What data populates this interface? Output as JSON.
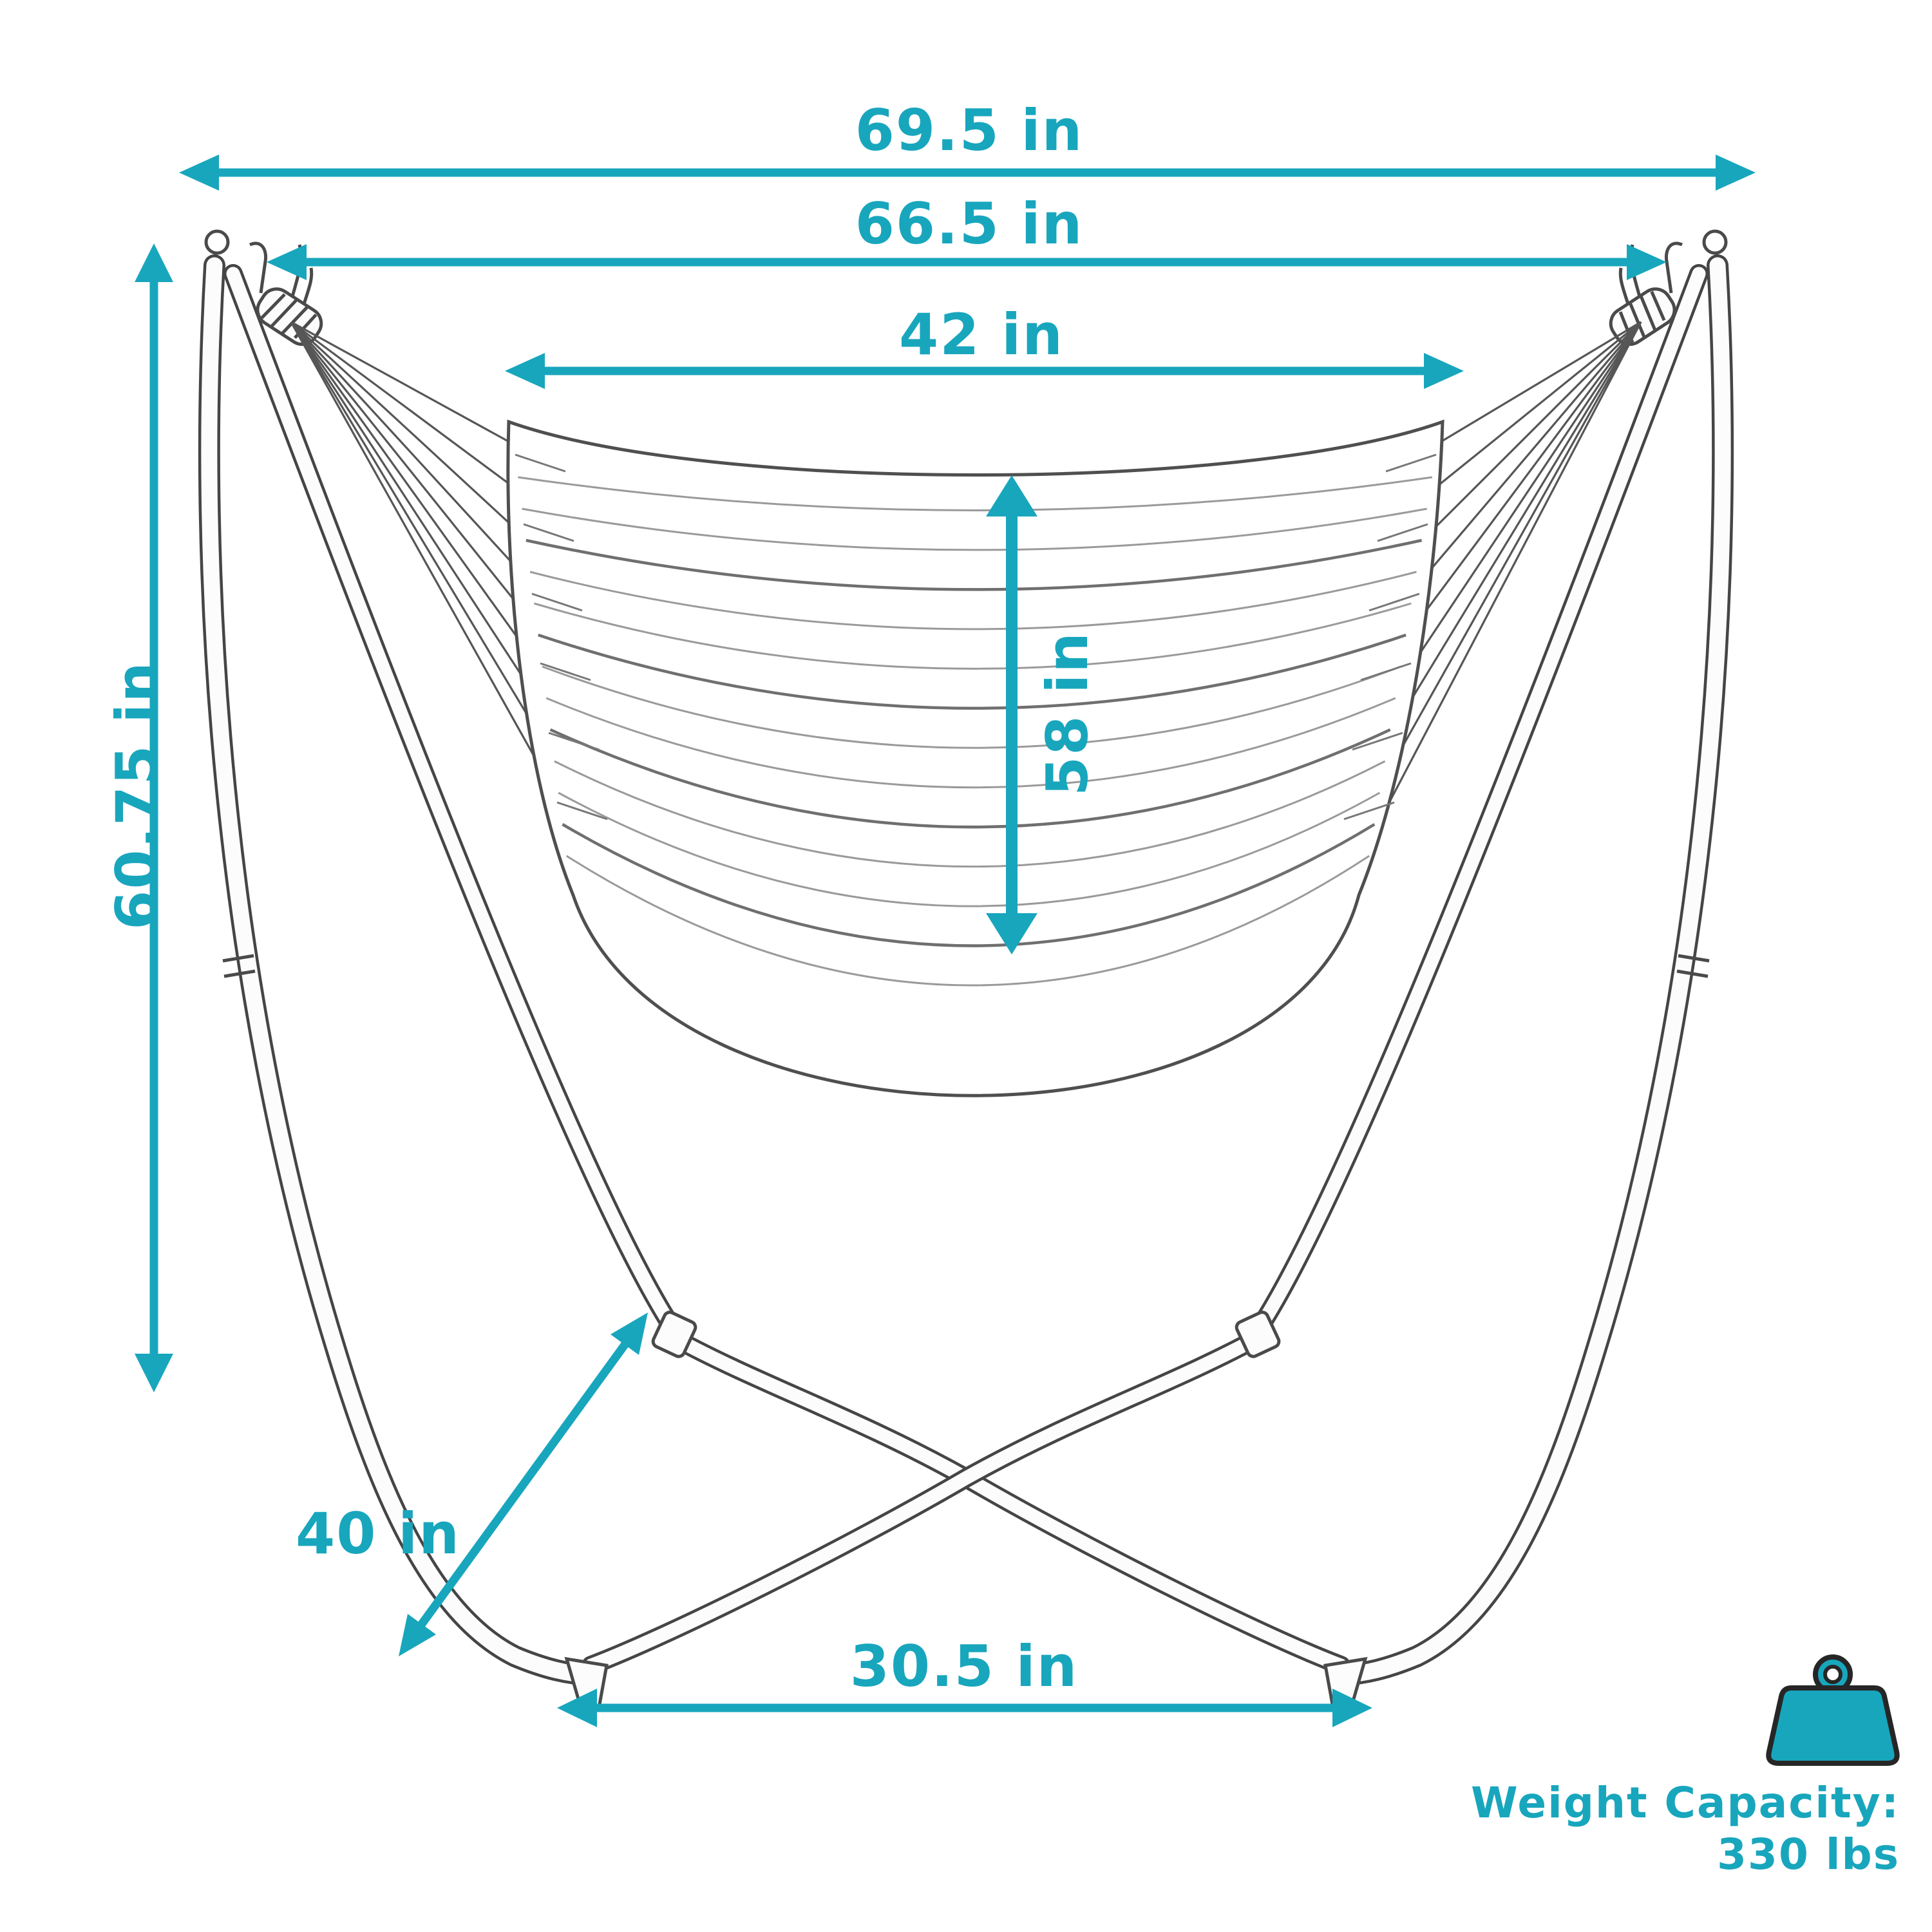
{
  "accent_color": "#18a6bd",
  "sketch_color": "#454545",
  "dimensions": {
    "overall_width": "69.5 in",
    "hook_to_hook_width": "66.5 in",
    "hammock_seat_width": "42 in",
    "hammock_fabric_height": "58 in",
    "stand_height": "60.75 in",
    "base_leg_depth": "40 in",
    "base_width": "30.5 in"
  },
  "weight_capacity": {
    "label": "Weight Capacity:",
    "value": "330 lbs"
  }
}
